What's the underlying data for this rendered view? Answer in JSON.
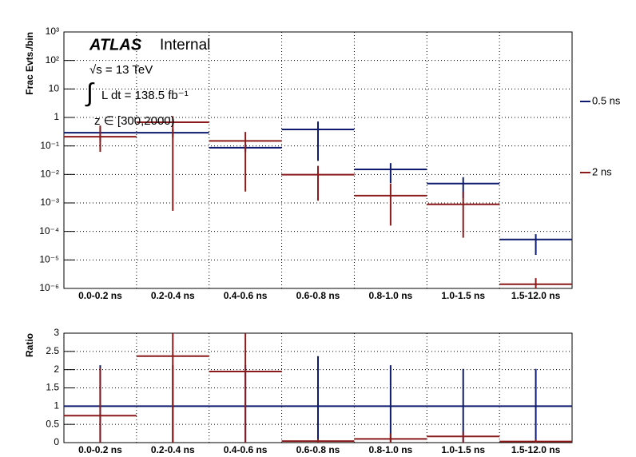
{
  "chart_data": [
    {
      "type": "errorbar",
      "ylabel": "Frac Evts./bin",
      "annotations": [
        "ATLAS",
        "Internal",
        "√s = 13 TeV",
        "∫",
        "L dt = 138.5 fb⁻¹",
        "z ∈ [300,2000)"
      ],
      "categories": [
        "0.0-0.2 ns",
        "0.2-0.4 ns",
        "0.4-0.6 ns",
        "0.6-0.8 ns",
        "0.8-1.0 ns",
        "1.0-1.5 ns",
        "1.5-12.0 ns"
      ],
      "log_y": true,
      "ylim": [
        1e-06,
        1000
      ],
      "yticks": [
        {
          "value": 1e-06,
          "label": "10⁻⁶"
        },
        {
          "value": 1e-05,
          "label": "10⁻⁵"
        },
        {
          "value": 0.0001,
          "label": "10⁻⁴"
        },
        {
          "value": 0.001,
          "label": "10⁻³"
        },
        {
          "value": 0.01,
          "label": "10⁻²"
        },
        {
          "value": 0.1,
          "label": "10⁻¹"
        },
        1,
        10,
        {
          "value": 100,
          "label": "10²"
        },
        {
          "value": 1000,
          "label": "10³"
        }
      ],
      "grid": true,
      "legend": "right",
      "series": [
        {
          "name": "0.5 ns",
          "color": "#0d1a6e",
          "values": [
            0.29,
            0.29,
            0.087,
            0.38,
            0.015,
            0.0048,
            5.2e-05
          ],
          "errors_low": [
            0.15,
            0.2,
            0.06,
            0.03,
            0.005,
            0.0015,
            1.5e-05
          ],
          "errors_high": [
            0.45,
            0.4,
            0.12,
            0.72,
            0.025,
            0.008,
            8e-05
          ]
        },
        {
          "name": "2 ns",
          "color": "#8b1a1a",
          "values": [
            0.21,
            0.68,
            0.15,
            0.0098,
            0.0018,
            0.00089,
            1.4e-06
          ],
          "errors_low": [
            0.062,
            0.00053,
            0.0025,
            0.0012,
            0.00016,
            6e-05,
            1e-06
          ],
          "errors_high": [
            0.52,
            1.1,
            0.31,
            0.02,
            0.0048,
            0.0025,
            2.3e-06
          ]
        }
      ]
    },
    {
      "type": "errorbar",
      "ylabel": "Ratio",
      "categories": [
        "0.0-0.2 ns",
        "0.2-0.4 ns",
        "0.4-0.6 ns",
        "0.6-0.8 ns",
        "0.8-1.0 ns",
        "1.0-1.5 ns",
        "1.5-12.0 ns"
      ],
      "ylim": [
        0,
        3
      ],
      "yticks": [
        0,
        0.5,
        1,
        1.5,
        2,
        2.5,
        3
      ],
      "grid": true,
      "series": [
        {
          "color": "#0d1a6e",
          "values": [
            1,
            1,
            1,
            1,
            1,
            1,
            1
          ],
          "errors_low": [
            0,
            0,
            0,
            0,
            0,
            0,
            0
          ],
          "errors_high": [
            2.12,
            2.12,
            2.12,
            2.37,
            2.12,
            2.02,
            2.02
          ]
        },
        {
          "color": "#8b1a1a",
          "values": [
            0.74,
            2.37,
            1.95,
            0.04,
            0.1,
            0.17,
            0.03
          ],
          "errors_low": [
            0,
            0,
            0,
            0,
            0,
            0,
            0
          ],
          "errors_high": [
            2.05,
            3,
            3,
            0.1,
            0.25,
            0.3,
            0.08
          ]
        }
      ]
    }
  ]
}
